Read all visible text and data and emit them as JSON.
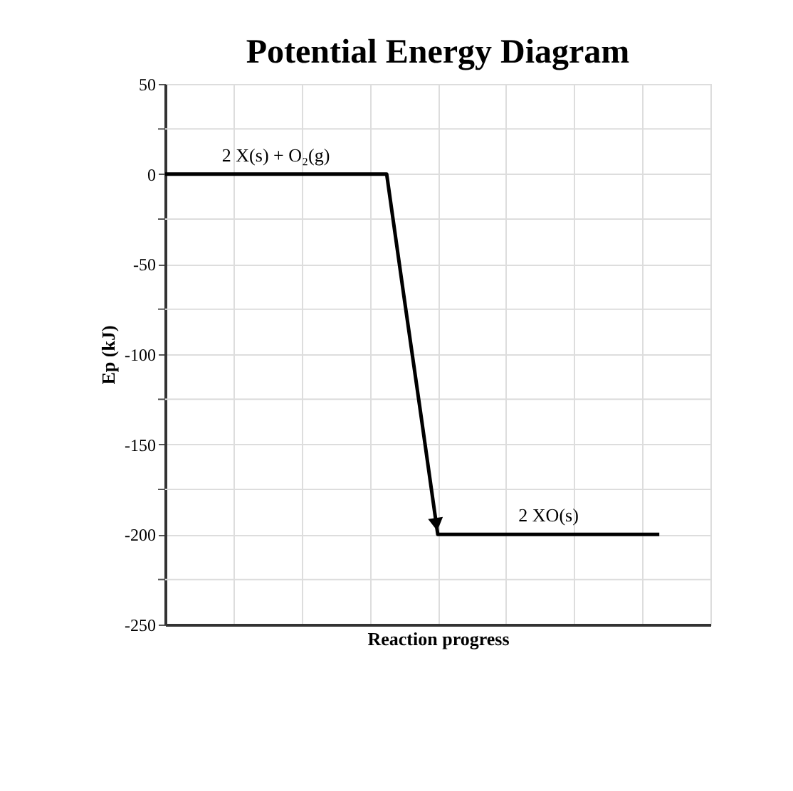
{
  "chart_data": {
    "type": "line",
    "title": "Potential Energy Diagram",
    "xlabel": "Reaction progress",
    "ylabel": "Ep (kJ)",
    "categories": [
      null,
      null,
      null,
      null,
      null,
      null,
      null,
      null,
      null,
      null,
      null,
      null,
      null,
      null,
      null,
      null,
      null,
      null,
      null,
      null,
      null,
      null,
      null,
      null,
      null,
      null,
      null,
      null,
      null,
      null,
      null,
      null,
      null
    ],
    "series": [
      {
        "color": "#000000",
        "values": [
          0,
          0,
          0,
          0,
          0,
          0,
          0,
          0,
          0,
          0,
          0,
          0,
          0,
          0,
          -67,
          -133,
          -200,
          -200,
          -200,
          -200,
          -200,
          -200,
          -200,
          -200,
          -200,
          -200,
          -200,
          -200,
          -200,
          -200,
          null,
          null,
          null
        ]
      }
    ],
    "ylim": [
      -250,
      50
    ],
    "yticks": [
      -250,
      {
        "value": -225,
        "label": null
      },
      -200,
      {
        "value": -175,
        "label": null
      },
      -150,
      {
        "value": -125,
        "label": null
      },
      -100,
      {
        "value": -75,
        "label": null
      },
      -50,
      {
        "value": -25,
        "label": null
      },
      0,
      {
        "value": 25,
        "label": null
      },
      50
    ],
    "annotations": [
      {
        "text": "2 X(s) + O₂(g)",
        "y": 0
      },
      {
        "text": "2 XO(s)",
        "y": -200
      }
    ],
    "grid": true,
    "tick_labels": "y",
    "marker": "none",
    "line_style": "solid"
  }
}
